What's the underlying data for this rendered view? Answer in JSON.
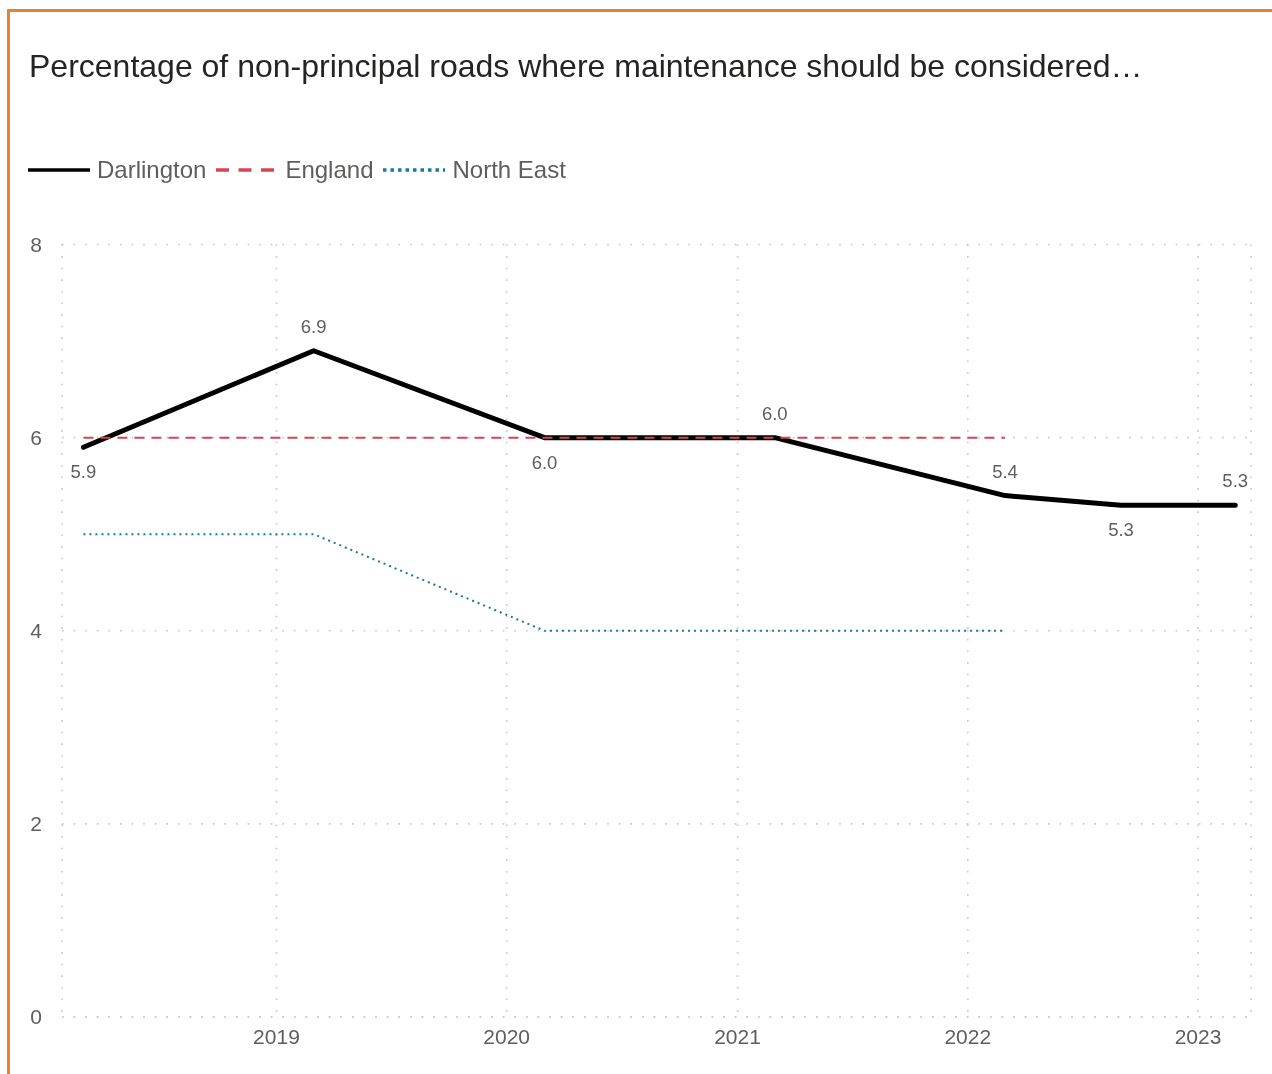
{
  "chart_data": {
    "type": "line",
    "title": "Percentage of non-principal roads where maintenance should be considered…",
    "x": [
      "2018-03",
      "2019-03",
      "2020-03",
      "2021-03",
      "2022-03",
      "2022-09",
      "2023-03"
    ],
    "series": [
      {
        "name": "Darlington",
        "color": "#000000",
        "line_style": "solid",
        "values": [
          5.9,
          6.9,
          6.0,
          6.0,
          5.4,
          5.3,
          5.3
        ],
        "value_labels": [
          "5.9",
          "6.9",
          "6.0",
          "6.0",
          "5.4",
          "5.3",
          "5.3"
        ]
      },
      {
        "name": "England",
        "color": "#d64554",
        "line_style": "dashed",
        "values": [
          6,
          6,
          6,
          6,
          6,
          null,
          null
        ]
      },
      {
        "name": "North East",
        "color": "#1a7a9a",
        "line_style": "dotted",
        "values": [
          5,
          5,
          4,
          4,
          4,
          null,
          null
        ]
      }
    ],
    "xlim": [
      "2018-01-26",
      "2023-03-26"
    ],
    "xticks": [
      "2019",
      "2020",
      "2021",
      "2022",
      "2023"
    ],
    "ylim": [
      0,
      8
    ],
    "yticks": [
      0,
      2,
      4,
      6,
      8
    ],
    "grid": true,
    "legend": "top left"
  }
}
